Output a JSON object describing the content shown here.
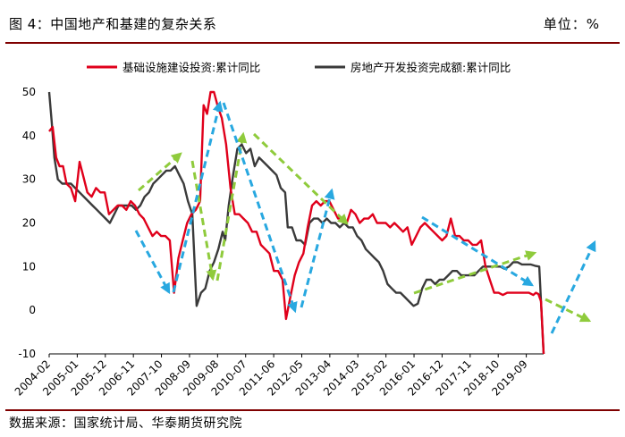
{
  "header": {
    "title": "图 4：中国地产和基建的复杂关系",
    "unit": "单位：%"
  },
  "footer": {
    "source": "数据来源：国家统计局、华泰期货研究院"
  },
  "colors": {
    "series_red": "#e0001b",
    "series_black": "#3a3a3a",
    "arrow_green": "#8fcb3c",
    "arrow_blue": "#28a8e0",
    "rule": "#7f0000"
  },
  "chart_data": {
    "type": "line",
    "ylim": [
      -10,
      50
    ],
    "yticks": [
      -10,
      0,
      10,
      20,
      30,
      40,
      50
    ],
    "x_tick_labels": [
      "2004-02",
      "2005-01",
      "2005-12",
      "2006-11",
      "2007-10",
      "2008-09",
      "2009-08",
      "2010-07",
      "2011-06",
      "2012-05",
      "2013-04",
      "2014-03",
      "2015-02",
      "2016-01",
      "2016-12",
      "2017-11",
      "2018-10",
      "2019-09"
    ],
    "legend_position": "top",
    "series": [
      {
        "name": "基础设施建设投资:累计同比",
        "color": "#e0001b",
        "points": [
          [
            0,
            41
          ],
          [
            0.4,
            42
          ],
          [
            0.8,
            35
          ],
          [
            1.2,
            33
          ],
          [
            1.6,
            33
          ],
          [
            2.0,
            29
          ],
          [
            2.5,
            28
          ],
          [
            3.0,
            25
          ],
          [
            3.5,
            34
          ],
          [
            3.9,
            31
          ],
          [
            4.4,
            27
          ],
          [
            4.9,
            26
          ],
          [
            5.4,
            28
          ],
          [
            5.9,
            27
          ],
          [
            6.4,
            27
          ],
          [
            6.9,
            22
          ],
          [
            7.4,
            23
          ],
          [
            7.9,
            24
          ],
          [
            8.4,
            24
          ],
          [
            8.9,
            23
          ],
          [
            9.4,
            25
          ],
          [
            9.9,
            24
          ],
          [
            10.4,
            22
          ],
          [
            10.9,
            21
          ],
          [
            11.4,
            19
          ],
          [
            11.9,
            17
          ],
          [
            12.4,
            18
          ],
          [
            12.9,
            17
          ],
          [
            13.4,
            17
          ],
          [
            13.9,
            16
          ],
          [
            14.4,
            4
          ],
          [
            14.9,
            12
          ],
          [
            15.4,
            16
          ],
          [
            15.9,
            20
          ],
          [
            16.4,
            22
          ],
          [
            16.9,
            23
          ],
          [
            17.4,
            25
          ],
          [
            17.8,
            47
          ],
          [
            18.2,
            45
          ],
          [
            18.6,
            50
          ],
          [
            19.0,
            50
          ],
          [
            19.4,
            47
          ],
          [
            19.9,
            44
          ],
          [
            20.4,
            38
          ],
          [
            20.9,
            28
          ],
          [
            21.4,
            22
          ],
          [
            21.9,
            22
          ],
          [
            22.4,
            21
          ],
          [
            22.9,
            20
          ],
          [
            23.4,
            18
          ],
          [
            23.9,
            18
          ],
          [
            24.4,
            15
          ],
          [
            24.9,
            14
          ],
          [
            25.4,
            13
          ],
          [
            25.9,
            9
          ],
          [
            26.4,
            9
          ],
          [
            26.9,
            7
          ],
          [
            27.3,
            -2
          ],
          [
            27.8,
            3
          ],
          [
            28.3,
            8
          ],
          [
            28.8,
            11
          ],
          [
            29.3,
            13
          ],
          [
            29.8,
            19
          ],
          [
            30.3,
            24
          ],
          [
            30.8,
            25
          ],
          [
            31.3,
            24
          ],
          [
            31.8,
            25
          ],
          [
            32.3,
            25
          ],
          [
            32.8,
            23
          ],
          [
            33.3,
            21
          ],
          [
            33.8,
            21
          ],
          [
            34.3,
            20
          ],
          [
            34.8,
            23
          ],
          [
            35.3,
            22
          ],
          [
            35.8,
            20
          ],
          [
            36.3,
            21
          ],
          [
            36.8,
            21
          ],
          [
            37.3,
            22
          ],
          [
            37.8,
            20
          ],
          [
            38.3,
            20
          ],
          [
            38.8,
            20
          ],
          [
            39.3,
            19
          ],
          [
            39.8,
            20
          ],
          [
            40.3,
            19
          ],
          [
            40.8,
            18
          ],
          [
            41.3,
            19
          ],
          [
            41.8,
            15
          ],
          [
            42.3,
            17
          ],
          [
            42.8,
            19
          ],
          [
            43.3,
            20
          ],
          [
            43.8,
            19
          ],
          [
            44.3,
            18
          ],
          [
            44.8,
            17
          ],
          [
            45.3,
            16
          ],
          [
            45.8,
            17
          ],
          [
            46.3,
            21
          ],
          [
            46.8,
            17
          ],
          [
            47.3,
            17
          ],
          [
            47.8,
            16
          ],
          [
            48.3,
            16
          ],
          [
            48.8,
            15
          ],
          [
            49.3,
            15
          ],
          [
            49.8,
            16
          ],
          [
            50.3,
            10
          ],
          [
            50.8,
            7
          ],
          [
            51.3,
            4
          ],
          [
            51.8,
            4
          ],
          [
            52.3,
            3.5
          ],
          [
            52.8,
            4
          ],
          [
            53.3,
            4
          ],
          [
            53.8,
            4
          ],
          [
            54.3,
            4
          ],
          [
            54.8,
            4
          ],
          [
            55.3,
            4
          ],
          [
            55.8,
            3.5
          ],
          [
            56.1,
            4
          ],
          [
            56.4,
            3.7
          ],
          [
            56.7,
            2
          ],
          [
            57.0,
            -10
          ]
        ]
      },
      {
        "name": "房地产开发投资完成额:累计同比",
        "color": "#3a3a3a",
        "points": [
          [
            0,
            50
          ],
          [
            0.3,
            43
          ],
          [
            0.6,
            35
          ],
          [
            1.0,
            30
          ],
          [
            1.5,
            29
          ],
          [
            2.0,
            29
          ],
          [
            2.5,
            29
          ],
          [
            3.0,
            28
          ],
          [
            3.5,
            27
          ],
          [
            4.0,
            26
          ],
          [
            4.5,
            25
          ],
          [
            5.0,
            24
          ],
          [
            5.5,
            23
          ],
          [
            6.0,
            22
          ],
          [
            6.5,
            21
          ],
          [
            7.0,
            20
          ],
          [
            7.5,
            22
          ],
          [
            8.0,
            24
          ],
          [
            8.5,
            24
          ],
          [
            9.0,
            24
          ],
          [
            9.5,
            24
          ],
          [
            10.0,
            23
          ],
          [
            10.5,
            24
          ],
          [
            11.0,
            26
          ],
          [
            11.5,
            27
          ],
          [
            12.0,
            29
          ],
          [
            12.5,
            30
          ],
          [
            13.0,
            31
          ],
          [
            13.5,
            32
          ],
          [
            14.0,
            32
          ],
          [
            14.5,
            33
          ],
          [
            15.0,
            31
          ],
          [
            15.5,
            29
          ],
          [
            16.0,
            25
          ],
          [
            16.5,
            22
          ],
          [
            17.0,
            1
          ],
          [
            17.5,
            4
          ],
          [
            18.0,
            5
          ],
          [
            18.5,
            9
          ],
          [
            19.0,
            11
          ],
          [
            19.5,
            14
          ],
          [
            20.0,
            18
          ],
          [
            20.3,
            16
          ],
          [
            20.7,
            24
          ],
          [
            21.2,
            31
          ],
          [
            21.7,
            37
          ],
          [
            22.2,
            38
          ],
          [
            22.7,
            36
          ],
          [
            23.2,
            37
          ],
          [
            23.7,
            33
          ],
          [
            24.2,
            35
          ],
          [
            24.7,
            34
          ],
          [
            25.2,
            33
          ],
          [
            25.7,
            32
          ],
          [
            26.2,
            31
          ],
          [
            26.7,
            28
          ],
          [
            27.2,
            27
          ],
          [
            27.5,
            19
          ],
          [
            28.0,
            19
          ],
          [
            28.5,
            16
          ],
          [
            29.0,
            16
          ],
          [
            29.5,
            15
          ],
          [
            30.0,
            20
          ],
          [
            30.5,
            21
          ],
          [
            31.0,
            21
          ],
          [
            31.5,
            20
          ],
          [
            32.0,
            21
          ],
          [
            32.5,
            20
          ],
          [
            33.0,
            20
          ],
          [
            33.5,
            19
          ],
          [
            34.0,
            20
          ],
          [
            34.5,
            19
          ],
          [
            35.0,
            19
          ],
          [
            35.5,
            17
          ],
          [
            36.0,
            16
          ],
          [
            36.5,
            14
          ],
          [
            37.0,
            13
          ],
          [
            37.5,
            12
          ],
          [
            38.0,
            11
          ],
          [
            38.5,
            9
          ],
          [
            39.0,
            6
          ],
          [
            39.5,
            5
          ],
          [
            40.0,
            4
          ],
          [
            40.5,
            4
          ],
          [
            41.0,
            3
          ],
          [
            41.5,
            2
          ],
          [
            42.0,
            1
          ],
          [
            42.5,
            1.5
          ],
          [
            43.0,
            5
          ],
          [
            43.5,
            7
          ],
          [
            44.0,
            7
          ],
          [
            44.5,
            6
          ],
          [
            45.0,
            7
          ],
          [
            45.5,
            7
          ],
          [
            46.0,
            8
          ],
          [
            46.5,
            9
          ],
          [
            47.0,
            9
          ],
          [
            47.5,
            8
          ],
          [
            48.0,
            8
          ],
          [
            48.5,
            8
          ],
          [
            49.0,
            8
          ],
          [
            49.5,
            9
          ],
          [
            50.0,
            10
          ],
          [
            50.5,
            10
          ],
          [
            51.0,
            10
          ],
          [
            51.5,
            10
          ],
          [
            52.0,
            10
          ],
          [
            52.5,
            9.5
          ],
          [
            53.0,
            10
          ],
          [
            53.5,
            11
          ],
          [
            54.0,
            11
          ],
          [
            54.5,
            10.5
          ],
          [
            55.0,
            10.5
          ],
          [
            55.5,
            10.5
          ],
          [
            56.0,
            10.2
          ],
          [
            56.5,
            10
          ],
          [
            57.0,
            -10
          ]
        ]
      }
    ]
  }
}
